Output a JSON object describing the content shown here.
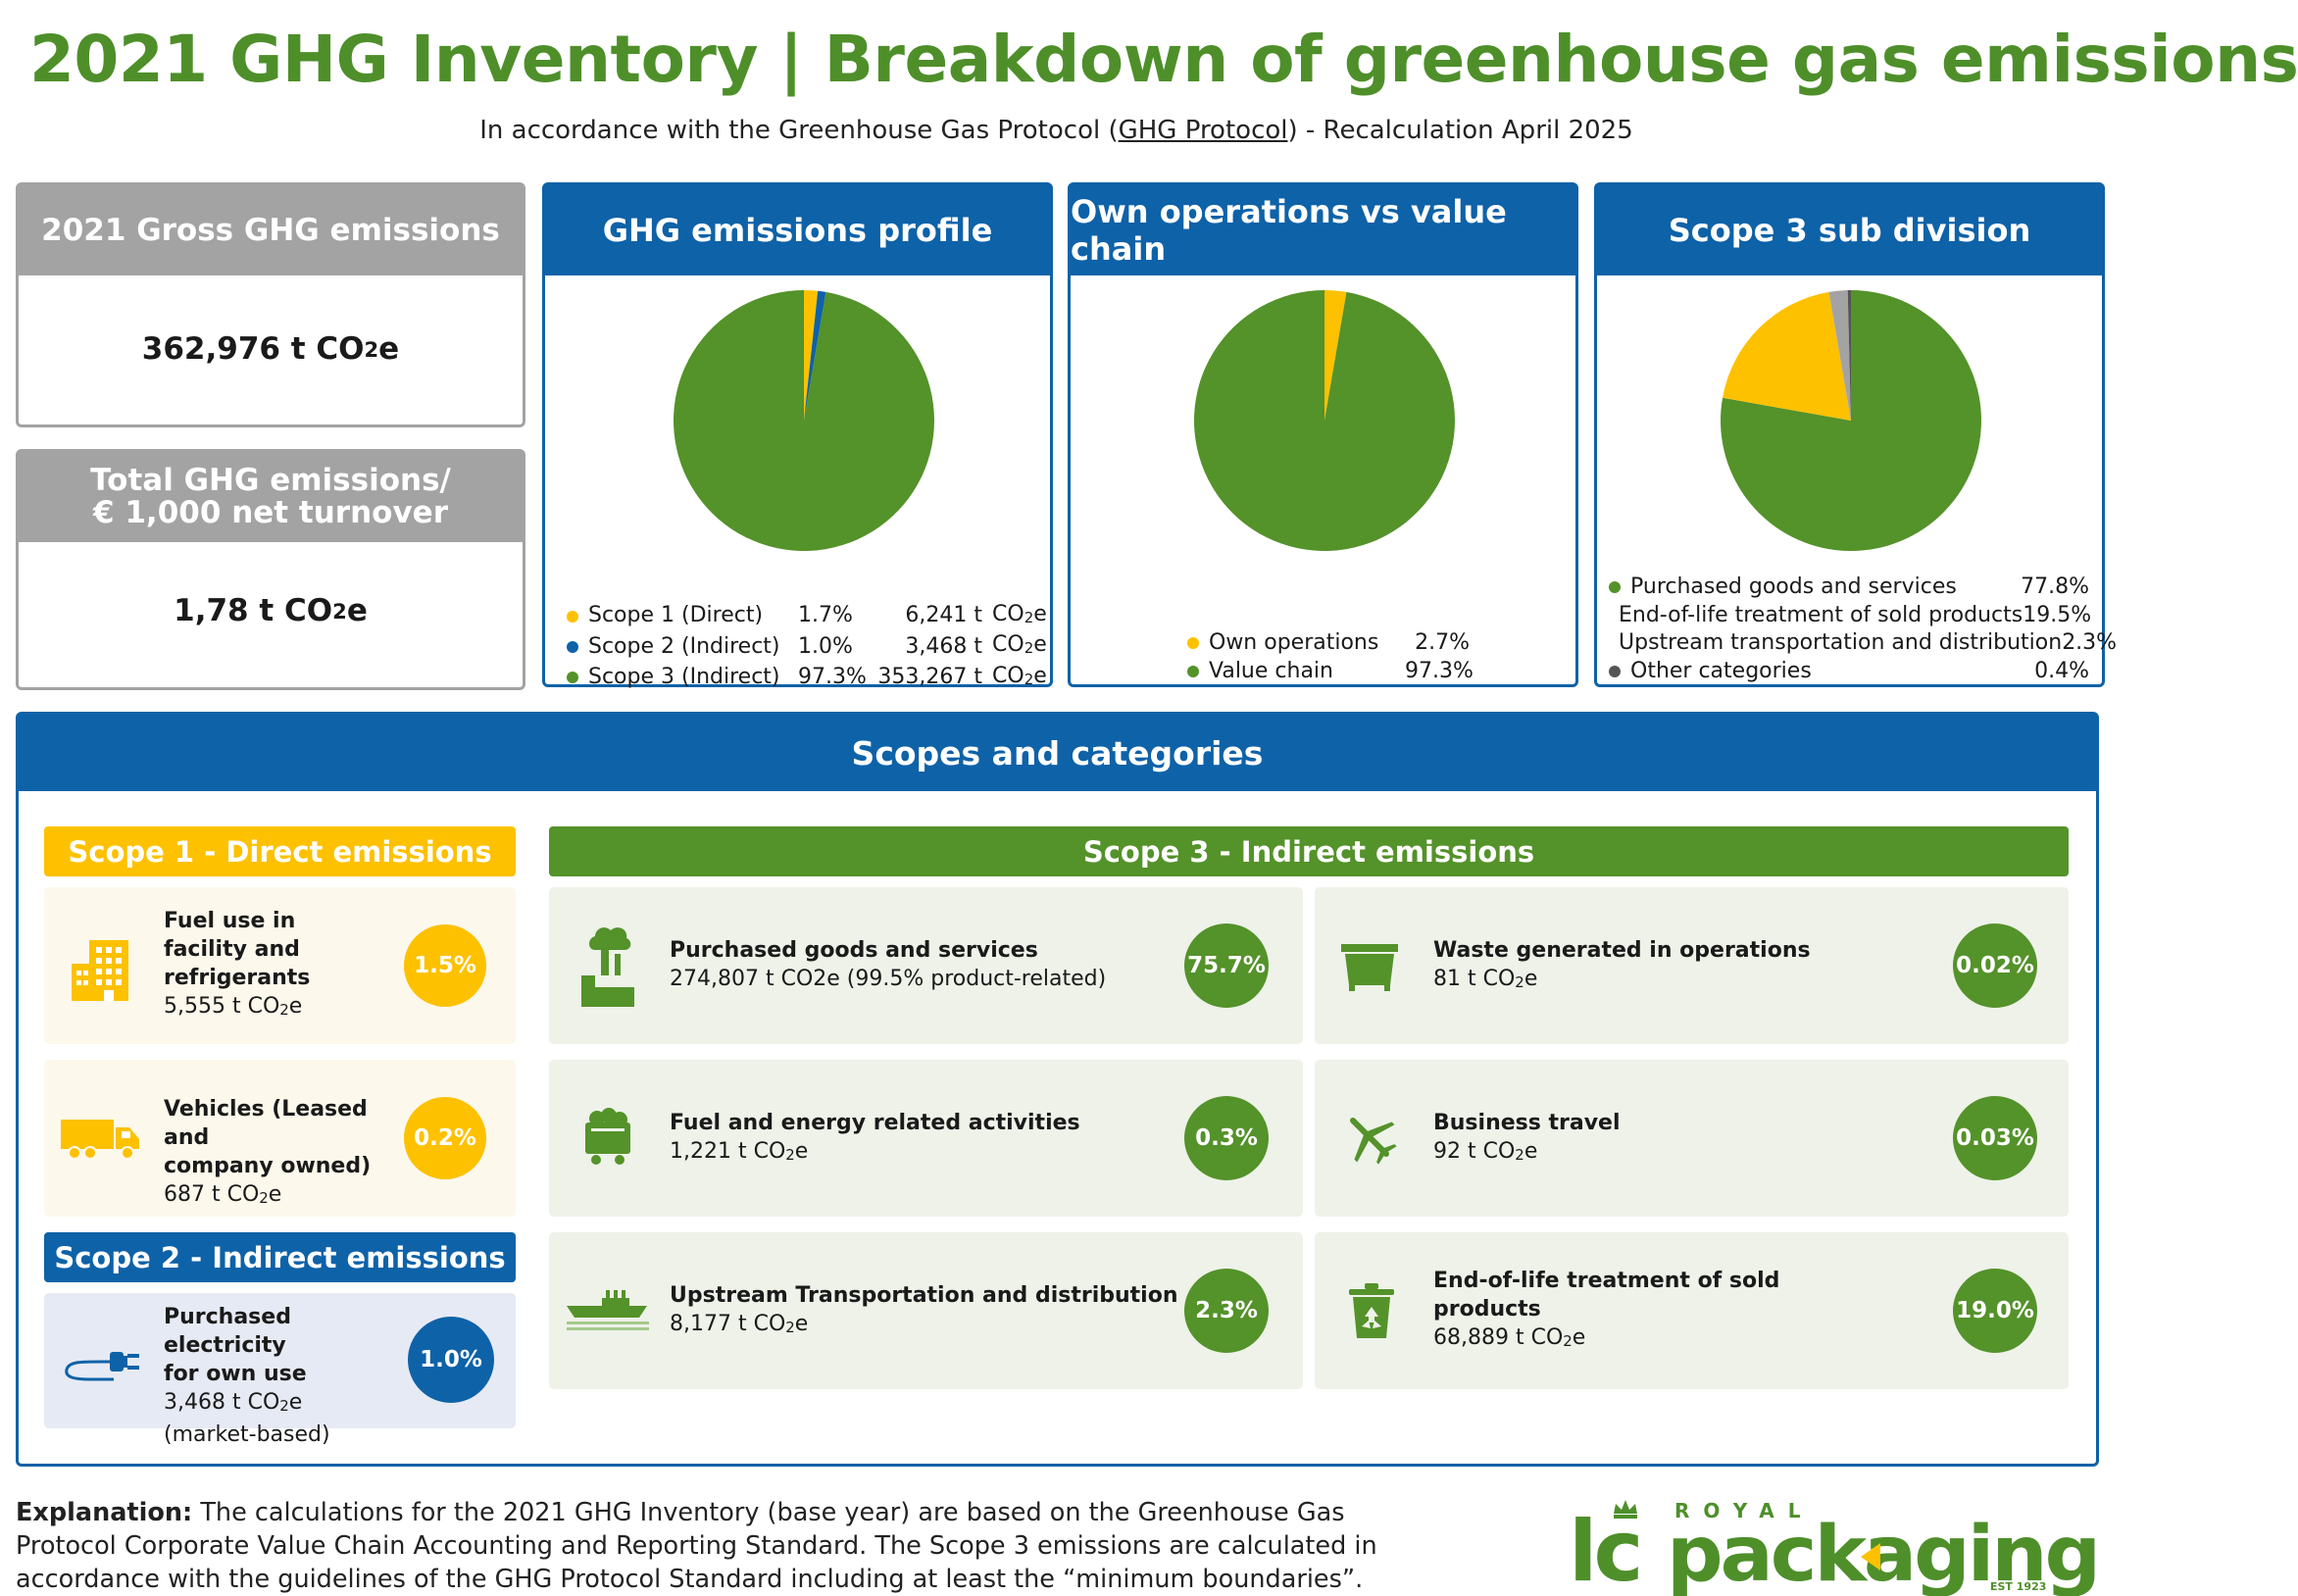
{
  "header": {
    "title_left": "2021 GHG Inventory",
    "title_sep": "|",
    "title_right": "Breakdown of greenhouse gas emissions",
    "subtitle_pre": "In accordance with the Greenhouse Gas Protocol (",
    "subtitle_link": "GHG Protocol",
    "subtitle_post": ") - Recalculation April 2025"
  },
  "kpis": {
    "gross": {
      "label": "2021 Gross GHG emissions",
      "value": "362,976 t CO",
      "sub": "2",
      "unit_suffix": "e"
    },
    "intensity": {
      "label_line1": "Total GHG emissions/",
      "label_line2": "€ 1,000 net turnover",
      "value": "1,78 t CO",
      "sub": "2",
      "unit_suffix": "e"
    }
  },
  "colors": {
    "green": "#4e8f2a",
    "pie_green": "#54922a",
    "yellow": "#fdc100",
    "blue": "#0e62a8",
    "grey": "#a3a3a3",
    "dark_grey": "#555555",
    "card_green_bg": "#eef2e9",
    "card_yellow_bg": "#fdf8ec",
    "card_blue_bg": "#e6eaf4"
  },
  "chart_data": [
    {
      "type": "pie",
      "title": "GHG emissions profile",
      "slices": [
        {
          "label": "Scope 1 (Direct)",
          "pct": 1.7,
          "value": "6,241 t",
          "unit": "CO2e",
          "color": "#fdc100"
        },
        {
          "label": "Scope 2 (Indirect)",
          "pct": 1.0,
          "value": "3,468 t",
          "unit": "CO2e",
          "color": "#0e62a8"
        },
        {
          "label": "Scope 3 (Indirect)",
          "pct": 97.3,
          "value": "353,267 t",
          "unit": "CO2e",
          "color": "#54922a"
        }
      ],
      "pct_text": [
        "1.7%",
        "1.0%",
        "97.3%"
      ]
    },
    {
      "type": "pie",
      "title": "Own operations vs value chain",
      "slices": [
        {
          "label": "Own operations",
          "pct": 2.7,
          "color": "#fdc100"
        },
        {
          "label": "Value chain",
          "pct": 97.3,
          "color": "#54922a"
        }
      ],
      "pct_text": [
        "2.7%",
        "97.3%"
      ]
    },
    {
      "type": "pie",
      "title": "Scope 3 sub division",
      "slices": [
        {
          "label": "Purchased goods and services",
          "pct": 77.8,
          "color": "#54922a"
        },
        {
          "label": "End-of-life treatment of sold products",
          "pct": 19.5,
          "color": "#fdc100"
        },
        {
          "label": "Upstream transportation and distribution",
          "pct": 2.3,
          "color": "#a3a3a3"
        },
        {
          "label": "Other categories",
          "pct": 0.4,
          "color": "#555555"
        }
      ],
      "pct_text": [
        "77.8%",
        "19.5%",
        "2.3%",
        "0.4%"
      ]
    }
  ],
  "scopes": {
    "title": "Scopes and categories",
    "scope1": {
      "label": "Scope 1 - Direct emissions",
      "items": [
        {
          "name_lines": [
            "Fuel use in",
            "facility and",
            "refrigerants"
          ],
          "value": "5,555 t CO",
          "suffix": "e",
          "pct": "1.5%",
          "icon": "building-icon"
        },
        {
          "name_lines": [
            "Vehicles (Leased and",
            "company owned)"
          ],
          "value": "687 t CO",
          "suffix": "e",
          "pct": "0.2%",
          "icon": "truck-icon"
        }
      ]
    },
    "scope2": {
      "label": "Scope 2 - Indirect emissions",
      "items": [
        {
          "name_lines": [
            "Purchased electricity",
            "for own use"
          ],
          "value": "3,468 t CO",
          "suffix": "e",
          "note": "(market-based)",
          "pct": "1.0%",
          "icon": "plug-icon"
        }
      ]
    },
    "scope3": {
      "label": "Scope 3 - Indirect emissions",
      "items": [
        {
          "name": "Purchased goods and services",
          "detail": "274,807 t CO2e (99.5% product-related)",
          "pct": "75.7%",
          "icon": "factory-icon"
        },
        {
          "name": "Waste generated in operations",
          "value": "81 t CO",
          "suffix": "e",
          "pct": "0.02%",
          "icon": "dumpster-icon"
        },
        {
          "name": "Fuel and energy related activities",
          "value": "1,221 t CO",
          "suffix": "e",
          "pct": "0.3%",
          "icon": "coal-cart-icon"
        },
        {
          "name": "Business travel",
          "value": "92 t CO",
          "suffix": "e",
          "pct": "0.03%",
          "icon": "airplane-icon"
        },
        {
          "name": "Upstream Transportation and distribution",
          "value": "8,177 t CO",
          "suffix": "e",
          "pct": "2.3%",
          "icon": "ship-icon"
        },
        {
          "name_lines": [
            "End-of-life treatment of sold",
            "products"
          ],
          "value": "68,889 t CO",
          "suffix": "e",
          "pct": "19.0%",
          "icon": "recycle-bin-icon"
        }
      ]
    }
  },
  "footer": {
    "explanation_label": "Explanation:",
    "explanation_text": " The calculations for the 2021 GHG Inventory (base year) are based on the Greenhouse Gas Protocol Corporate Value Chain Accounting and Reporting Standard. The Scope 3 emissions are calculated in accordance with the guidelines of the GHG Protocol Standard including at least the “minimum boundaries”.",
    "logo": {
      "lc": "lc",
      "royal": "ROYAL",
      "word": "packaging",
      "est": "EST 1923"
    }
  }
}
